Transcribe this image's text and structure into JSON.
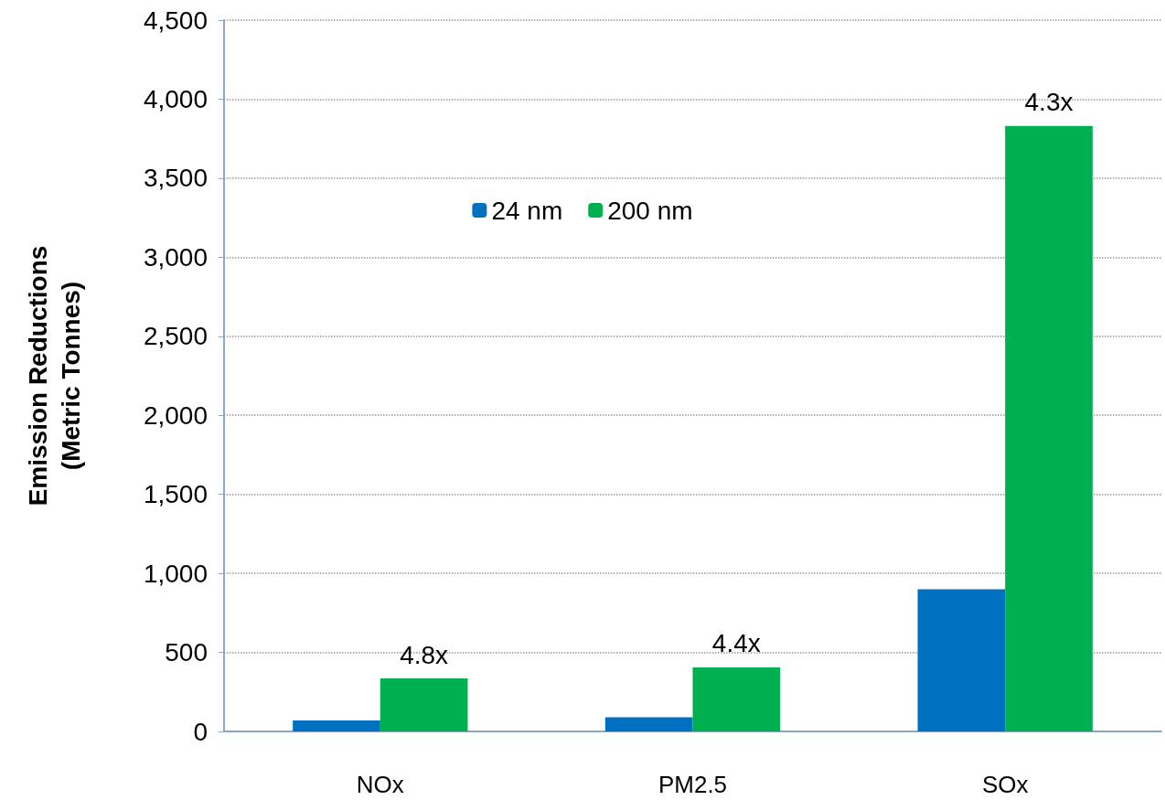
{
  "chart_data": {
    "type": "bar",
    "ylabel": "Emission Reductions\n(Metric Tonnes)",
    "categories": [
      "NOx",
      "PM2.5",
      "SOx"
    ],
    "series": [
      {
        "name": "24 nm",
        "color": "#0070c0",
        "values": [
          70,
          90,
          900
        ]
      },
      {
        "name": "200 nm",
        "color": "#00b050",
        "values": [
          335,
          405,
          3830
        ]
      }
    ],
    "annotations": [
      {
        "text": "4.8x",
        "x": "NOx",
        "y": 335
      },
      {
        "text": "4.4x",
        "x": "PM2.5",
        "y": 405
      },
      {
        "text": "4.3x",
        "x": "SOx",
        "y": 3830
      }
    ],
    "ylim": [
      0,
      4500
    ],
    "yticks": [
      {
        "value": 0,
        "label": "0"
      },
      {
        "value": 500,
        "label": "500"
      },
      {
        "value": 1000,
        "label": "1,000"
      },
      {
        "value": 1500,
        "label": "1,500"
      },
      {
        "value": 2000,
        "label": "2,000"
      },
      {
        "value": 2500,
        "label": "2,500"
      },
      {
        "value": 3000,
        "label": "3,000"
      },
      {
        "value": 3500,
        "label": "3,500"
      },
      {
        "value": 4000,
        "label": "4,000"
      },
      {
        "value": 4500,
        "label": "4,500"
      }
    ],
    "grid": "y",
    "legend": "top"
  }
}
